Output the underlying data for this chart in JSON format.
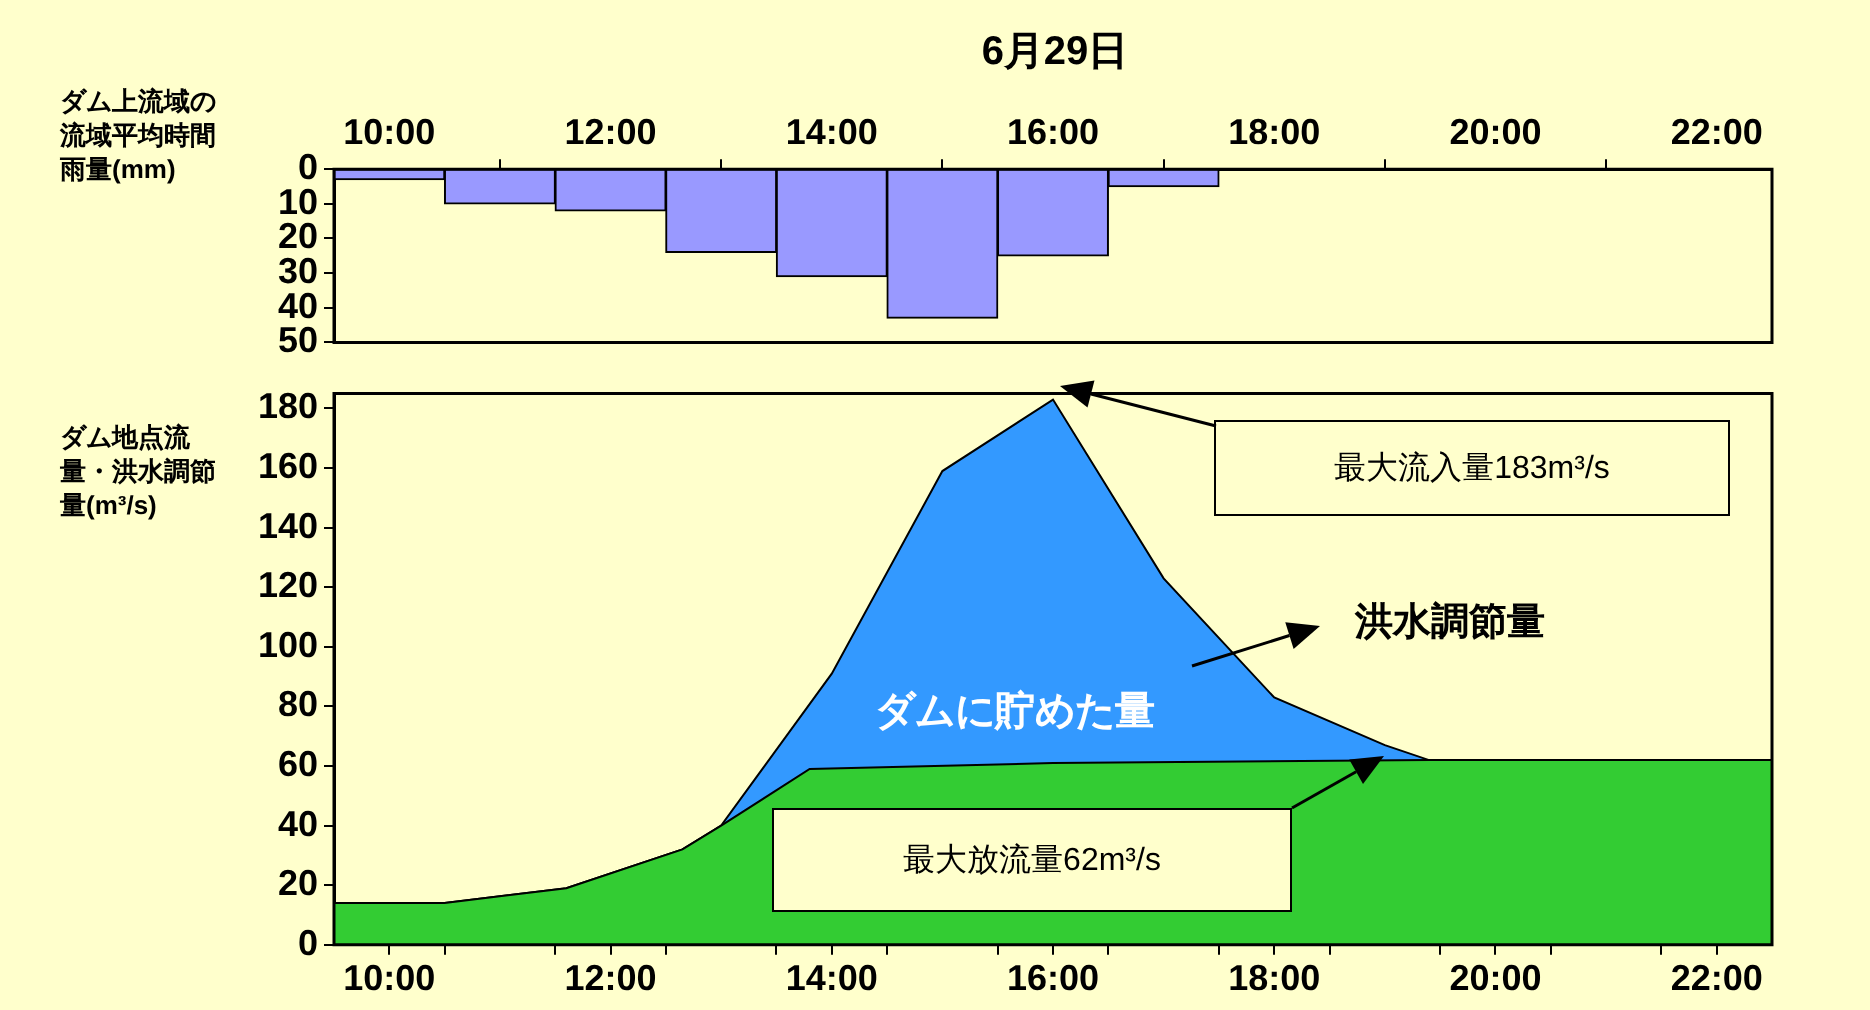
{
  "chart_data": [
    {
      "type": "bar",
      "title": "6月29日",
      "ylabel": "ダム上流域の流域平均時間雨量(mm)",
      "x": [
        10,
        11,
        12,
        13,
        14,
        15,
        16,
        17
      ],
      "series": [
        {
          "color": "#9999ff",
          "values": [
            3,
            10,
            12,
            24,
            31,
            43,
            25,
            5
          ]
        }
      ],
      "xlim": [
        9.5,
        22.5
      ],
      "xticks": [
        {
          "value": 10,
          "label": "10:00"
        },
        {
          "value": 12,
          "label": "12:00"
        },
        {
          "value": 14,
          "label": "14:00"
        },
        {
          "value": 16,
          "label": "16:00"
        },
        {
          "value": 18,
          "label": "18:00"
        },
        {
          "value": 20,
          "label": "20:00"
        },
        {
          "value": 22,
          "label": "22:00"
        }
      ],
      "ylim": [
        50,
        0
      ],
      "yticks": [
        0,
        10,
        20,
        30,
        40,
        50
      ],
      "grid": false,
      "legend": false
    },
    {
      "type": "area",
      "ylabel": "ダム地点流量・洪水調節量(m³/s)",
      "series": [
        {
          "color": "#3399ff",
          "x": [
            9.5,
            10.5,
            11.6,
            12.65,
            13,
            14,
            15,
            16,
            17,
            18,
            19,
            19.4,
            21.3,
            22.5
          ],
          "values": [
            14,
            14,
            19,
            32,
            40,
            91,
            159,
            183,
            123,
            83,
            67,
            62,
            62,
            62
          ]
        },
        {
          "color": "#33cc33",
          "x": [
            9.5,
            10.5,
            11.6,
            12.65,
            13,
            13.8,
            16,
            19.4,
            21.3,
            22.5
          ],
          "values": [
            14,
            14,
            19,
            32,
            40,
            59,
            61,
            62,
            62,
            62
          ]
        }
      ],
      "xlim": [
        9.5,
        22.5
      ],
      "xticks": [
        {
          "value": 10,
          "label": "10:00"
        },
        {
          "value": 10.5,
          "label": null
        },
        {
          "value": 11.5,
          "label": null
        },
        {
          "value": 12,
          "label": "12:00"
        },
        {
          "value": 12.5,
          "label": null
        },
        {
          "value": 13.5,
          "label": null
        },
        {
          "value": 14,
          "label": "14:00"
        },
        {
          "value": 14.5,
          "label": null
        },
        {
          "value": 15.5,
          "label": null
        },
        {
          "value": 16,
          "label": "16:00"
        },
        {
          "value": 16.5,
          "label": null
        },
        {
          "value": 17.5,
          "label": null
        },
        {
          "value": 18,
          "label": "18:00"
        },
        {
          "value": 18.5,
          "label": null
        },
        {
          "value": 19.5,
          "label": null
        },
        {
          "value": 20,
          "label": "20:00"
        },
        {
          "value": 20.5,
          "label": null
        },
        {
          "value": 21.5,
          "label": null
        },
        {
          "value": 22,
          "label": "22:00"
        }
      ],
      "ylim": [
        0,
        185
      ],
      "yticks": [
        0,
        20,
        40,
        60,
        80,
        100,
        120,
        140,
        160,
        180
      ],
      "grid": false,
      "legend": false,
      "marker": "none",
      "annotations": [
        "最大流入量183m³/s",
        "洪水調節量",
        "ダムに貯めた量",
        "最大放流量62m³/s"
      ]
    }
  ]
}
